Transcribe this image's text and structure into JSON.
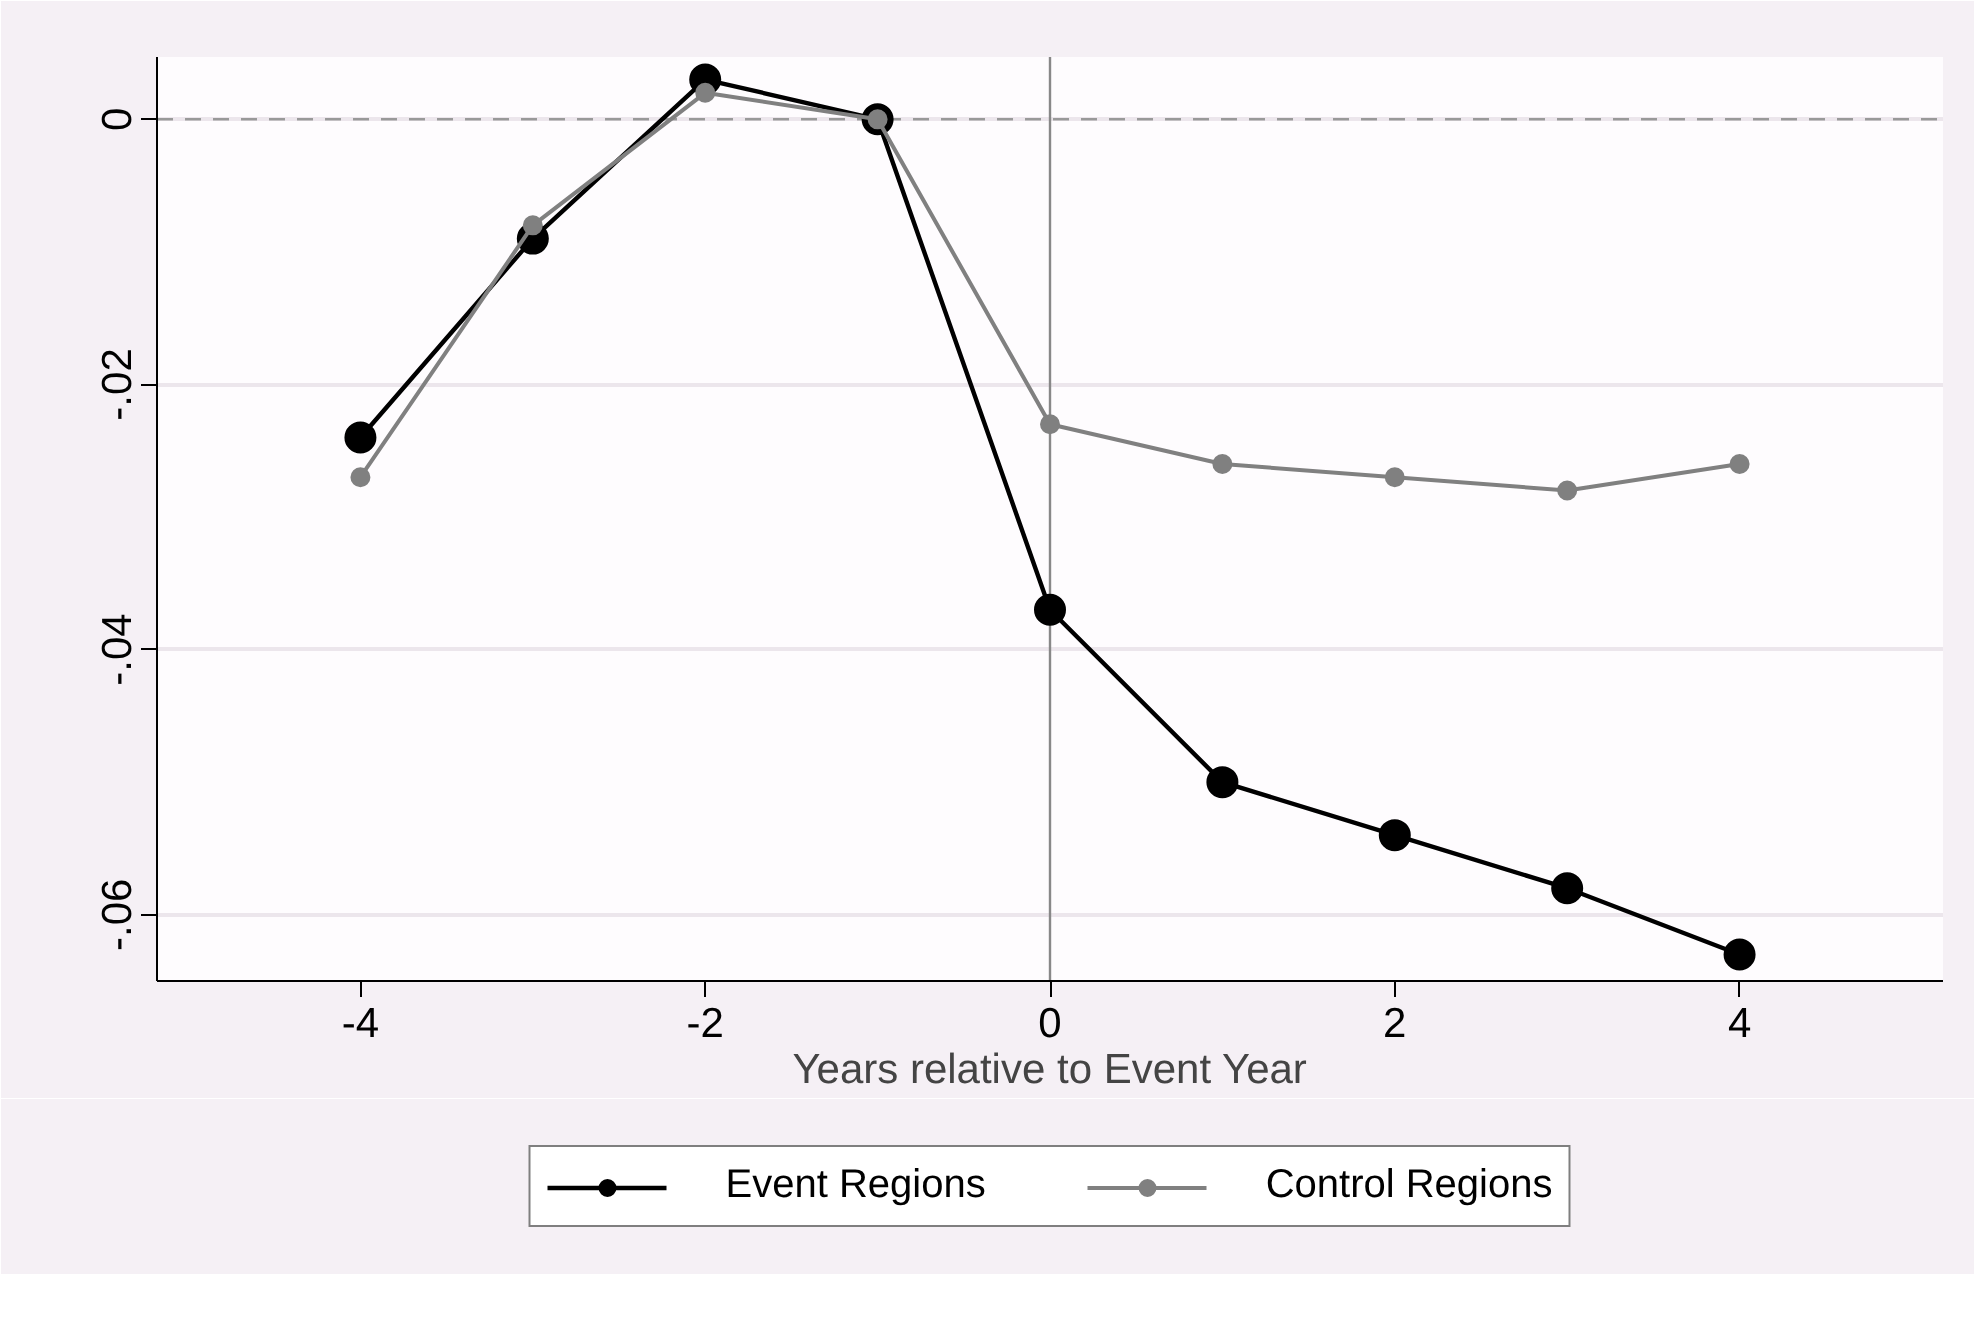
{
  "chart_data": {
    "type": "line",
    "xlabel": "Years relative to Event Year",
    "x": [
      -4,
      -3,
      -2,
      -1,
      0,
      1,
      2,
      3,
      4
    ],
    "series": [
      {
        "name": "Event Regions",
        "color": "#000000",
        "values": [
          -0.024,
          -0.009,
          0.003,
          0,
          -0.037,
          -0.05,
          -0.054,
          -0.058,
          -0.063
        ]
      },
      {
        "name": "Control Regions",
        "color": "#808080",
        "values": [
          -0.027,
          -0.008,
          0.002,
          0,
          -0.023,
          -0.026,
          -0.027,
          -0.028,
          -0.026
        ]
      }
    ],
    "xlim": [
      -5.18,
      5.18
    ],
    "ylim": [
      -0.065,
      0.0047
    ],
    "xticks": [
      -4,
      -2,
      0,
      2,
      4
    ],
    "yticks": [
      {
        "value": -0.06,
        "label": "-.06"
      },
      {
        "value": -0.04,
        "label": "-.04"
      },
      {
        "value": -0.02,
        "label": "-.02"
      },
      0
    ],
    "ref_lines": [
      {
        "axis": "y",
        "value": 0,
        "color": "#999999",
        "line_style": "dashed"
      },
      {
        "axis": "x",
        "value": 0,
        "color": "#888888",
        "line_style": "solid"
      }
    ],
    "grid": "y",
    "legend": "bottom",
    "marker": "circle",
    "line_style": "solid"
  }
}
